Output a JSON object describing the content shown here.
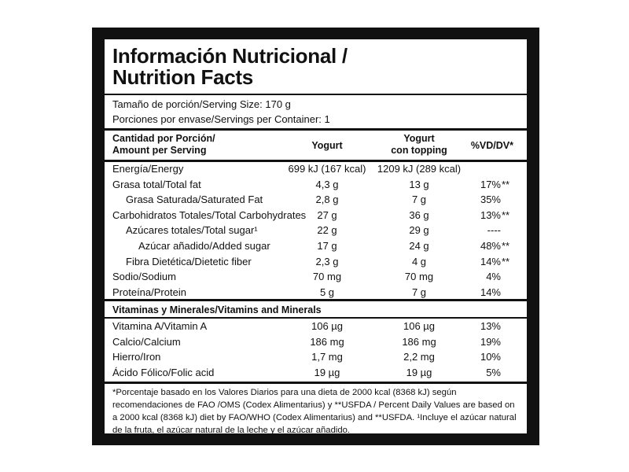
{
  "header": {
    "title_lines": [
      "Información Nutricional /",
      "Nutrition Facts"
    ]
  },
  "serving": {
    "size": "Tamaño de porción/Serving Size: 170 g",
    "containers": "Porciones por envase/Servings per Container: 1"
  },
  "table": {
    "columns": [
      {
        "lines": [
          "Cantidad por Porción/",
          "Amount per Serving"
        ]
      },
      {
        "lines": [
          "Yogurt"
        ]
      },
      {
        "lines": [
          "Yogurt",
          "con topping"
        ]
      },
      {
        "lines": [
          "%VD/DV*"
        ]
      }
    ],
    "rows": [
      {
        "label": "Energía/Energy",
        "yogurt": "699 kJ (167 kcal)",
        "topping": "1209 kJ (289 kcal)"
      },
      {
        "label": "Grasa total/Total fat",
        "yogurt": "4,3 g",
        "topping": "13 g",
        "dv": "17%",
        "note": "**",
        "sub": [
          {
            "label": "Grasa Saturada/Saturated Fat",
            "yogurt": "2,8 g",
            "topping": "7 g",
            "dv": "35%"
          }
        ]
      },
      {
        "label": "Carbohidratos Totales/Total Carbohydrates",
        "yogurt": "27 g",
        "topping": "36 g",
        "dv": "13%",
        "note": "**",
        "sub": [
          {
            "label": "Azúcares totales/Total sugar¹",
            "yogurt": "22 g",
            "topping": "29 g",
            "dv": "----",
            "sub": [
              {
                "label": "Azúcar añadido/Added sugar",
                "yogurt": "17 g",
                "topping": "24 g",
                "dv": "48%",
                "note": "**"
              }
            ]
          },
          {
            "label": "Fibra Dietética/Dietetic fiber",
            "yogurt": "2,3 g",
            "topping": "4 g",
            "dv": "14%",
            "note": "**"
          }
        ]
      },
      {
        "label": "Sodio/Sodium",
        "yogurt": "70 mg",
        "topping": "70 mg",
        "dv": "4%"
      },
      {
        "label": "Proteína/Protein",
        "yogurt": "5 g",
        "topping": "7 g",
        "dv": "14%"
      }
    ]
  },
  "vitamins": {
    "title": "Vitaminas y Minerales/Vitamins and Minerals",
    "rows": [
      {
        "label": "Vitamina A/Vitamin A",
        "yogurt": "106 µg",
        "topping": "106 µg",
        "dv": "13%"
      },
      {
        "label": "Calcio/Calcium",
        "yogurt": "186 mg",
        "topping": "186 mg",
        "dv": "19%"
      },
      {
        "label": "Hierro/Iron",
        "yogurt": "1,7 mg",
        "topping": "2,2 mg",
        "dv": "10%"
      },
      {
        "label": "Ácido Fólico/Folic acid",
        "yogurt": "19 µg",
        "topping": "19 µg",
        "dv": "5%"
      }
    ]
  },
  "footnote": "*Porcentaje basado en los Valores Diarios para una dieta de 2000 kcal (8368 kJ) según recomendaciones de FAO /OMS (Codex Alimentarius) y **USFDA / Percent Daily Values are based on a 2000 kcal (8368 kJ) diet by FAO/WHO (Codex Alimentarius) and **USFDA. ¹Incluye el azúcar natural de la fruta, el azúcar natural de la leche y el azúcar añadido."
}
